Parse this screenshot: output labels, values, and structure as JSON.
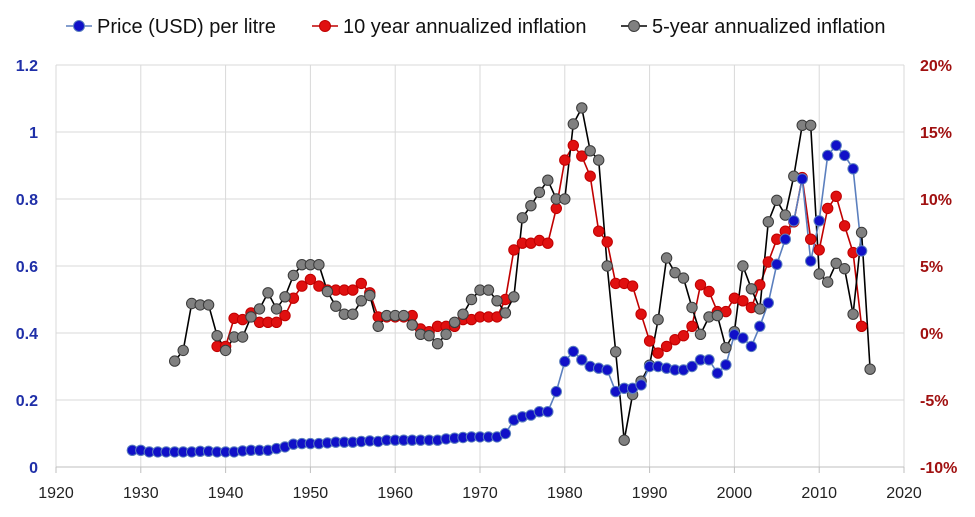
{
  "chart_data": {
    "type": "line",
    "title": "",
    "xlabel": "",
    "ylabel": "",
    "xlim": [
      1920,
      2020
    ],
    "x_ticks": [
      "1920",
      "1930",
      "1940",
      "1950",
      "1960",
      "1970",
      "1980",
      "1990",
      "2000",
      "2010",
      "2020"
    ],
    "y_left": {
      "lim": [
        0,
        1.2
      ],
      "ticks": [
        "0",
        "0.2",
        "0.4",
        "0.6",
        "0.8",
        "1",
        "1.2"
      ]
    },
    "y_right": {
      "lim": [
        -10,
        20
      ],
      "unit": "%",
      "ticks": [
        "-10%",
        "-5%",
        "0%",
        "5%",
        "10%",
        "15%",
        "20%"
      ]
    },
    "grid": true,
    "legend_position": "top",
    "series": [
      {
        "name": "Price (USD)  per litre",
        "axis": "left",
        "color": "#1010c8",
        "line_color": "#5b7fbe",
        "marker": "circle",
        "points": [
          [
            1929,
            0.05
          ],
          [
            1930,
            0.05
          ],
          [
            1931,
            0.045
          ],
          [
            1932,
            0.045
          ],
          [
            1933,
            0.045
          ],
          [
            1934,
            0.045
          ],
          [
            1935,
            0.045
          ],
          [
            1936,
            0.045
          ],
          [
            1937,
            0.047
          ],
          [
            1938,
            0.047
          ],
          [
            1939,
            0.045
          ],
          [
            1940,
            0.045
          ],
          [
            1941,
            0.045
          ],
          [
            1942,
            0.048
          ],
          [
            1943,
            0.05
          ],
          [
            1944,
            0.05
          ],
          [
            1945,
            0.05
          ],
          [
            1946,
            0.055
          ],
          [
            1947,
            0.06
          ],
          [
            1948,
            0.068
          ],
          [
            1949,
            0.07
          ],
          [
            1950,
            0.07
          ],
          [
            1951,
            0.07
          ],
          [
            1952,
            0.072
          ],
          [
            1953,
            0.074
          ],
          [
            1954,
            0.074
          ],
          [
            1955,
            0.074
          ],
          [
            1956,
            0.076
          ],
          [
            1957,
            0.078
          ],
          [
            1958,
            0.076
          ],
          [
            1959,
            0.08
          ],
          [
            1960,
            0.08
          ],
          [
            1961,
            0.08
          ],
          [
            1962,
            0.08
          ],
          [
            1963,
            0.08
          ],
          [
            1964,
            0.08
          ],
          [
            1965,
            0.08
          ],
          [
            1966,
            0.084
          ],
          [
            1967,
            0.086
          ],
          [
            1968,
            0.088
          ],
          [
            1969,
            0.09
          ],
          [
            1970,
            0.09
          ],
          [
            1971,
            0.09
          ],
          [
            1972,
            0.09
          ],
          [
            1973,
            0.1
          ],
          [
            1974,
            0.14
          ],
          [
            1975,
            0.15
          ],
          [
            1976,
            0.155
          ],
          [
            1977,
            0.165
          ],
          [
            1978,
            0.165
          ],
          [
            1979,
            0.225
          ],
          [
            1980,
            0.315
          ],
          [
            1981,
            0.345
          ],
          [
            1982,
            0.32
          ],
          [
            1983,
            0.3
          ],
          [
            1984,
            0.295
          ],
          [
            1985,
            0.29
          ],
          [
            1986,
            0.225
          ],
          [
            1987,
            0.235
          ],
          [
            1988,
            0.235
          ],
          [
            1989,
            0.245
          ],
          [
            1990,
            0.3
          ],
          [
            1991,
            0.3
          ],
          [
            1992,
            0.295
          ],
          [
            1993,
            0.29
          ],
          [
            1994,
            0.29
          ],
          [
            1995,
            0.3
          ],
          [
            1996,
            0.32
          ],
          [
            1997,
            0.32
          ],
          [
            1998,
            0.28
          ],
          [
            1999,
            0.305
          ],
          [
            2000,
            0.395
          ],
          [
            2001,
            0.385
          ],
          [
            2002,
            0.36
          ],
          [
            2003,
            0.42
          ],
          [
            2004,
            0.49
          ],
          [
            2005,
            0.605
          ],
          [
            2006,
            0.68
          ],
          [
            2007,
            0.735
          ],
          [
            2008,
            0.86
          ],
          [
            2009,
            0.615
          ],
          [
            2010,
            0.735
          ],
          [
            2011,
            0.93
          ],
          [
            2012,
            0.96
          ],
          [
            2013,
            0.93
          ],
          [
            2014,
            0.89
          ],
          [
            2015,
            0.645
          ]
        ]
      },
      {
        "name": "10 year annualized inflation",
        "axis": "right",
        "color": "#e01010",
        "line_color": "#c00000",
        "marker": "circle",
        "points": [
          [
            1939,
            -1
          ],
          [
            1940,
            -1
          ],
          [
            1941,
            1.1
          ],
          [
            1942,
            1
          ],
          [
            1943,
            1.5
          ],
          [
            1944,
            0.8
          ],
          [
            1945,
            0.8
          ],
          [
            1946,
            0.8
          ],
          [
            1947,
            1.3
          ],
          [
            1948,
            2.6
          ],
          [
            1949,
            3.5
          ],
          [
            1950,
            4
          ],
          [
            1951,
            3.5
          ],
          [
            1952,
            3.2
          ],
          [
            1953,
            3.2
          ],
          [
            1954,
            3.2
          ],
          [
            1955,
            3.2
          ],
          [
            1956,
            3.7
          ],
          [
            1957,
            3
          ],
          [
            1958,
            1.2
          ],
          [
            1959,
            1.2
          ],
          [
            1960,
            1.2
          ],
          [
            1961,
            1.2
          ],
          [
            1962,
            1.3
          ],
          [
            1963,
            0.3
          ],
          [
            1964,
            0.1
          ],
          [
            1965,
            0.5
          ],
          [
            1966,
            0.5
          ],
          [
            1967,
            0.5
          ],
          [
            1968,
            1
          ],
          [
            1969,
            1
          ],
          [
            1970,
            1.2
          ],
          [
            1971,
            1.2
          ],
          [
            1972,
            1.2
          ],
          [
            1973,
            2.5
          ],
          [
            1974,
            6.2
          ],
          [
            1975,
            6.7
          ],
          [
            1976,
            6.7
          ],
          [
            1977,
            6.9
          ],
          [
            1978,
            6.7
          ],
          [
            1979,
            9.3
          ],
          [
            1980,
            12.9
          ],
          [
            1981,
            14
          ],
          [
            1982,
            13.2
          ],
          [
            1983,
            11.7
          ],
          [
            1984,
            7.6
          ],
          [
            1985,
            6.8
          ],
          [
            1986,
            3.7
          ],
          [
            1987,
            3.7
          ],
          [
            1988,
            3.5
          ],
          [
            1989,
            1.4
          ],
          [
            1990,
            -0.6
          ],
          [
            1991,
            -1.5
          ],
          [
            1992,
            -1
          ],
          [
            1993,
            -0.5
          ],
          [
            1994,
            -0.2
          ],
          [
            1995,
            0.5
          ],
          [
            1996,
            3.6
          ],
          [
            1997,
            3.1
          ],
          [
            1998,
            1.6
          ],
          [
            1999,
            1.6
          ],
          [
            2000,
            2.6
          ],
          [
            2001,
            2.4
          ],
          [
            2002,
            1.9
          ],
          [
            2003,
            3.6
          ],
          [
            2004,
            5.3
          ],
          [
            2005,
            7
          ],
          [
            2006,
            7.6
          ],
          [
            2007,
            8.3
          ],
          [
            2008,
            11.6
          ],
          [
            2009,
            7
          ],
          [
            2010,
            6.2
          ],
          [
            2011,
            9.3
          ],
          [
            2012,
            10.2
          ],
          [
            2013,
            8
          ],
          [
            2014,
            6
          ],
          [
            2015,
            0.5
          ]
        ]
      },
      {
        "name": "5-year annualized inflation",
        "axis": "right",
        "color": "#808080",
        "line_color": "#000000",
        "marker": "circle",
        "points": [
          [
            1934,
            -2.1
          ],
          [
            1935,
            -1.3
          ],
          [
            1936,
            2.2
          ],
          [
            1937,
            2.1
          ],
          [
            1938,
            2.1
          ],
          [
            1939,
            -0.2
          ],
          [
            1940,
            -1.3
          ],
          [
            1941,
            -0.3
          ],
          [
            1942,
            -0.3
          ],
          [
            1943,
            1.2
          ],
          [
            1944,
            1.8
          ],
          [
            1945,
            3
          ],
          [
            1946,
            1.8
          ],
          [
            1947,
            2.7
          ],
          [
            1948,
            4.3
          ],
          [
            1949,
            5.1
          ],
          [
            1950,
            5.1
          ],
          [
            1951,
            5.1
          ],
          [
            1952,
            3.1
          ],
          [
            1953,
            2
          ],
          [
            1954,
            1.4
          ],
          [
            1955,
            1.4
          ],
          [
            1956,
            2.4
          ],
          [
            1957,
            2.8
          ],
          [
            1958,
            0.5
          ],
          [
            1959,
            1.3
          ],
          [
            1960,
            1.3
          ],
          [
            1961,
            1.3
          ],
          [
            1962,
            0.6
          ],
          [
            1963,
            -0.1
          ],
          [
            1964,
            -0.2
          ],
          [
            1965,
            -0.8
          ],
          [
            1966,
            -0.1
          ],
          [
            1967,
            0.8
          ],
          [
            1968,
            1.4
          ],
          [
            1969,
            2.5
          ],
          [
            1970,
            3.2
          ],
          [
            1971,
            3.2
          ],
          [
            1972,
            2.4
          ],
          [
            1973,
            1.5
          ],
          [
            1974,
            2.7
          ],
          [
            1975,
            8.6
          ],
          [
            1976,
            9.5
          ],
          [
            1977,
            10.5
          ],
          [
            1978,
            11.4
          ],
          [
            1979,
            10
          ],
          [
            1980,
            10
          ],
          [
            1981,
            15.6
          ],
          [
            1982,
            16.8
          ],
          [
            1983,
            13.6
          ],
          [
            1984,
            12.9
          ],
          [
            1985,
            5
          ],
          [
            1986,
            -1.4
          ],
          [
            1987,
            -8
          ],
          [
            1988,
            -4.6
          ],
          [
            1989,
            -3.6
          ],
          [
            1990,
            -2.4
          ],
          [
            1991,
            1
          ],
          [
            1992,
            5.6
          ],
          [
            1993,
            4.5
          ],
          [
            1994,
            4.1
          ],
          [
            1995,
            1.9
          ],
          [
            1996,
            -0.1
          ],
          [
            1997,
            1.2
          ],
          [
            1998,
            1.3
          ],
          [
            1999,
            -1.1
          ],
          [
            2000,
            0.1
          ],
          [
            2001,
            5
          ],
          [
            2002,
            3.3
          ],
          [
            2003,
            1.8
          ],
          [
            2004,
            8.3
          ],
          [
            2005,
            9.9
          ],
          [
            2006,
            8.8
          ],
          [
            2007,
            11.7
          ],
          [
            2008,
            15.5
          ],
          [
            2009,
            15.5
          ],
          [
            2010,
            4.4
          ],
          [
            2011,
            3.8
          ],
          [
            2012,
            5.2
          ],
          [
            2013,
            4.8
          ],
          [
            2014,
            1.4
          ],
          [
            2015,
            7.5
          ],
          [
            2016,
            -2.7
          ]
        ]
      }
    ]
  }
}
